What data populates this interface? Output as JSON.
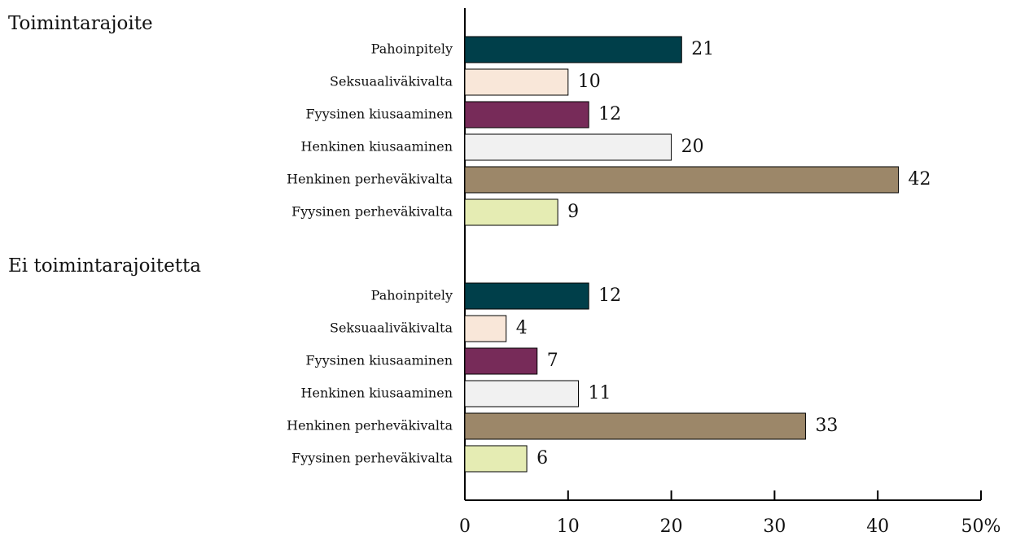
{
  "chart_data": {
    "type": "bar",
    "orientation": "horizontal",
    "categories": [
      "Pahoinpitely",
      "Seksuaaliväkivalta",
      "Fyysinen kiusaaminen",
      "Henkinen kiusaaminen",
      "Henkinen perheväkivalta",
      "Fyysinen perheväkivalta"
    ],
    "colors": [
      "#003f4a",
      "#f9e7d9",
      "#772b59",
      "#f1f1f1",
      "#9c8769",
      "#e5ecb3"
    ],
    "series": [
      {
        "name": "Toimintarajoite",
        "values": [
          21,
          10,
          12,
          20,
          42,
          9
        ]
      },
      {
        "name": "Ei toimintarajoitetta",
        "values": [
          12,
          4,
          7,
          11,
          33,
          6
        ]
      }
    ],
    "xlim": [
      0,
      50
    ],
    "xticks": [
      0,
      10,
      20,
      30,
      40,
      {
        "value": 50,
        "label": "50%"
      }
    ]
  }
}
